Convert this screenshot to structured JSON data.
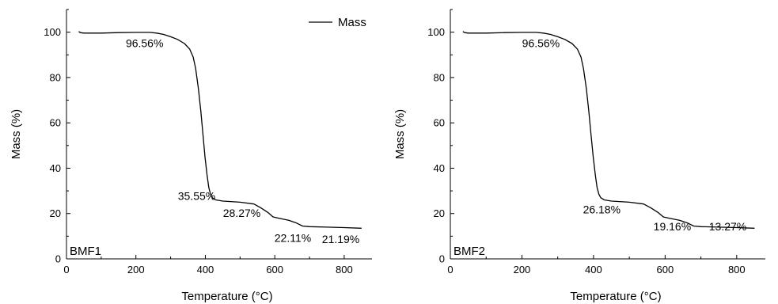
{
  "chart_data": [
    {
      "type": "line",
      "panel_label": "BMF1",
      "xlabel": "Temperature (°C)",
      "ylabel": "Mass (%)",
      "xlim": [
        0,
        880
      ],
      "ylim": [
        0,
        110
      ],
      "x_ticks": [
        0,
        200,
        400,
        600,
        800
      ],
      "y_ticks": [
        0,
        20,
        40,
        60,
        80,
        100
      ],
      "legend": {
        "entries": [
          "Mass"
        ],
        "placement": "top-right"
      },
      "grid": false,
      "series": [
        {
          "name": "Mass",
          "color": "#000000",
          "points": [
            [
              35,
              100.3
            ],
            [
              40,
              99.8
            ],
            [
              50,
              99.6
            ],
            [
              100,
              99.6
            ],
            [
              150,
              99.8
            ],
            [
              200,
              99.9
            ],
            [
              240,
              99.9
            ],
            [
              260,
              99.6
            ],
            [
              280,
              99.0
            ],
            [
              300,
              98.0
            ],
            [
              320,
              96.8
            ],
            [
              340,
              95.0
            ],
            [
              355,
              92.5
            ],
            [
              365,
              89.0
            ],
            [
              372,
              84.0
            ],
            [
              380,
              75.0
            ],
            [
              387,
              65.0
            ],
            [
              393,
              55.0
            ],
            [
              399,
              45.0
            ],
            [
              405,
              37.0
            ],
            [
              410,
              31.5
            ],
            [
              415,
              28.5
            ],
            [
              420,
              27.0
            ],
            [
              430,
              26.0
            ],
            [
              450,
              25.5
            ],
            [
              500,
              25.0
            ],
            [
              540,
              24.2
            ],
            [
              560,
              22.5
            ],
            [
              580,
              20.5
            ],
            [
              595,
              18.5
            ],
            [
              610,
              18.0
            ],
            [
              640,
              17.0
            ],
            [
              660,
              16.0
            ],
            [
              680,
              14.5
            ],
            [
              700,
              14.2
            ],
            [
              750,
              14.0
            ],
            [
              800,
              13.8
            ],
            [
              850,
              13.5
            ]
          ]
        }
      ],
      "annotations": [
        {
          "text": "96.56%",
          "x": 225,
          "y": 93.5
        },
        {
          "text": "35.55%",
          "x": 375,
          "y": 26
        },
        {
          "text": "28.27%",
          "x": 505,
          "y": 18.5
        },
        {
          "text": "22.11%",
          "x": 652,
          "y": 7.5
        },
        {
          "text": "21.19%",
          "x": 790,
          "y": 7
        }
      ]
    },
    {
      "type": "line",
      "panel_label": "BMF2",
      "xlabel": "Temperature (°C)",
      "ylabel": "Mass (%)",
      "xlim": [
        0,
        880
      ],
      "ylim": [
        0,
        110
      ],
      "x_ticks": [
        0,
        200,
        400,
        600,
        800
      ],
      "y_ticks": [
        0,
        20,
        40,
        60,
        80,
        100
      ],
      "grid": false,
      "series": [
        {
          "name": "Mass",
          "color": "#000000",
          "points": [
            [
              35,
              100.3
            ],
            [
              40,
              99.8
            ],
            [
              50,
              99.6
            ],
            [
              100,
              99.6
            ],
            [
              150,
              99.8
            ],
            [
              200,
              99.9
            ],
            [
              240,
              99.9
            ],
            [
              260,
              99.6
            ],
            [
              280,
              99.0
            ],
            [
              300,
              98.0
            ],
            [
              320,
              96.8
            ],
            [
              340,
              95.0
            ],
            [
              355,
              92.5
            ],
            [
              365,
              89.0
            ],
            [
              372,
              84.0
            ],
            [
              380,
              75.0
            ],
            [
              387,
              65.0
            ],
            [
              393,
              55.0
            ],
            [
              399,
              45.0
            ],
            [
              405,
              37.0
            ],
            [
              410,
              31.5
            ],
            [
              415,
              28.5
            ],
            [
              420,
              27.0
            ],
            [
              430,
              26.0
            ],
            [
              450,
              25.5
            ],
            [
              500,
              25.0
            ],
            [
              540,
              24.2
            ],
            [
              560,
              22.5
            ],
            [
              580,
              20.5
            ],
            [
              595,
              18.5
            ],
            [
              610,
              18.0
            ],
            [
              640,
              17.0
            ],
            [
              660,
              16.0
            ],
            [
              680,
              14.5
            ],
            [
              700,
              14.2
            ],
            [
              750,
              14.0
            ],
            [
              800,
              13.8
            ],
            [
              850,
              13.5
            ]
          ]
        }
      ],
      "annotations": [
        {
          "text": "96.56%",
          "x": 253,
          "y": 93.5
        },
        {
          "text": "26.18%",
          "x": 423,
          "y": 20
        },
        {
          "text": "19.16%",
          "x": 620,
          "y": 12.5
        },
        {
          "text": "13.27%",
          "x": 775,
          "y": 12.5
        }
      ]
    }
  ]
}
